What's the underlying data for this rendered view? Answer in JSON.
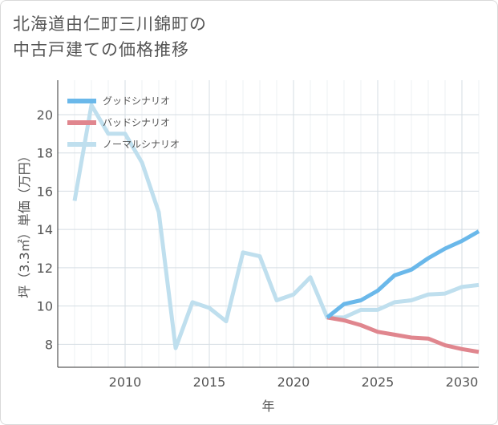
{
  "chart_data": {
    "type": "line",
    "title_lines": [
      "北海道由仁町三川錦町の",
      "中古戸建ての価格推移"
    ],
    "xlabel": "年",
    "ylabel": "坪（3.3㎡）単価（万円）",
    "xlim": [
      2006.0,
      2031.0
    ],
    "ylim": [
      6.8,
      21.8
    ],
    "x_ticks": [
      2010,
      2015,
      2020,
      2025,
      2030
    ],
    "x_tick_labels": [
      "2010",
      "2015",
      "2020",
      "2025",
      "2030"
    ],
    "y_ticks": [
      8,
      10,
      12,
      14,
      16,
      18,
      20
    ],
    "y_tick_labels": [
      "8",
      "10",
      "12",
      "14",
      "16",
      "18",
      "20"
    ],
    "grid": true,
    "legend_position": "top-left",
    "series": [
      {
        "name": "グッドシナリオ",
        "color": "#6ab8ea",
        "x": [
          2022,
          2023,
          2024,
          2025,
          2026,
          2027,
          2028,
          2029,
          2030,
          2031
        ],
        "values": [
          9.4,
          10.1,
          10.3,
          10.8,
          11.6,
          11.9,
          12.5,
          13.0,
          13.4,
          13.9
        ]
      },
      {
        "name": "バッドシナリオ",
        "color": "#e0868e",
        "x": [
          2022,
          2023,
          2024,
          2025,
          2026,
          2027,
          2028,
          2029,
          2030,
          2031
        ],
        "values": [
          9.4,
          9.25,
          9.0,
          8.65,
          8.5,
          8.35,
          8.3,
          7.95,
          7.75,
          7.6
        ]
      },
      {
        "name": "ノーマルシナリオ",
        "color": "#bfdfee",
        "x": [
          2007,
          2008,
          2009,
          2010,
          2011,
          2012,
          2013,
          2014,
          2015,
          2016,
          2017,
          2018,
          2019,
          2020,
          2021,
          2022,
          2023,
          2024,
          2025,
          2026,
          2027,
          2028,
          2029,
          2030,
          2031
        ],
        "values": [
          15.5,
          20.5,
          19.0,
          19.0,
          17.5,
          14.9,
          7.8,
          10.2,
          9.9,
          9.2,
          12.8,
          12.6,
          10.3,
          10.6,
          11.5,
          9.4,
          9.4,
          9.8,
          9.8,
          10.2,
          10.3,
          10.6,
          10.65,
          11.0,
          11.1
        ]
      }
    ]
  }
}
